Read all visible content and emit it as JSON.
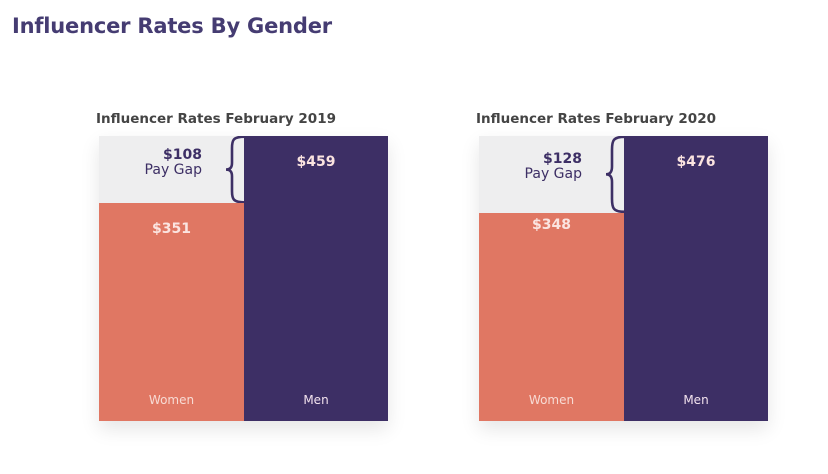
{
  "page": {
    "title": "Influencer Rates By Gender"
  },
  "colors": {
    "women": "#e07763",
    "men": "#3d2f65",
    "background": "#eeeeef",
    "title": "#453c72"
  },
  "chart_data": [
    {
      "type": "bar",
      "title": "Influencer Rates February 2019",
      "categories": [
        "Women",
        "Men"
      ],
      "values": [
        351,
        459
      ],
      "value_labels": [
        "$351",
        "$459"
      ],
      "annotation": {
        "value": 108,
        "value_label": "$108",
        "label": "Pay Gap"
      },
      "ylim": [
        0,
        459
      ],
      "grid": false,
      "legend": "none"
    },
    {
      "type": "bar",
      "title": "Influencer Rates February 2020",
      "categories": [
        "Women",
        "Men"
      ],
      "values": [
        348,
        476
      ],
      "value_labels": [
        "$348",
        "$476"
      ],
      "annotation": {
        "value": 128,
        "value_label": "$128",
        "label": "Pay Gap"
      },
      "ylim": [
        0,
        476
      ],
      "grid": false,
      "legend": "none"
    }
  ]
}
